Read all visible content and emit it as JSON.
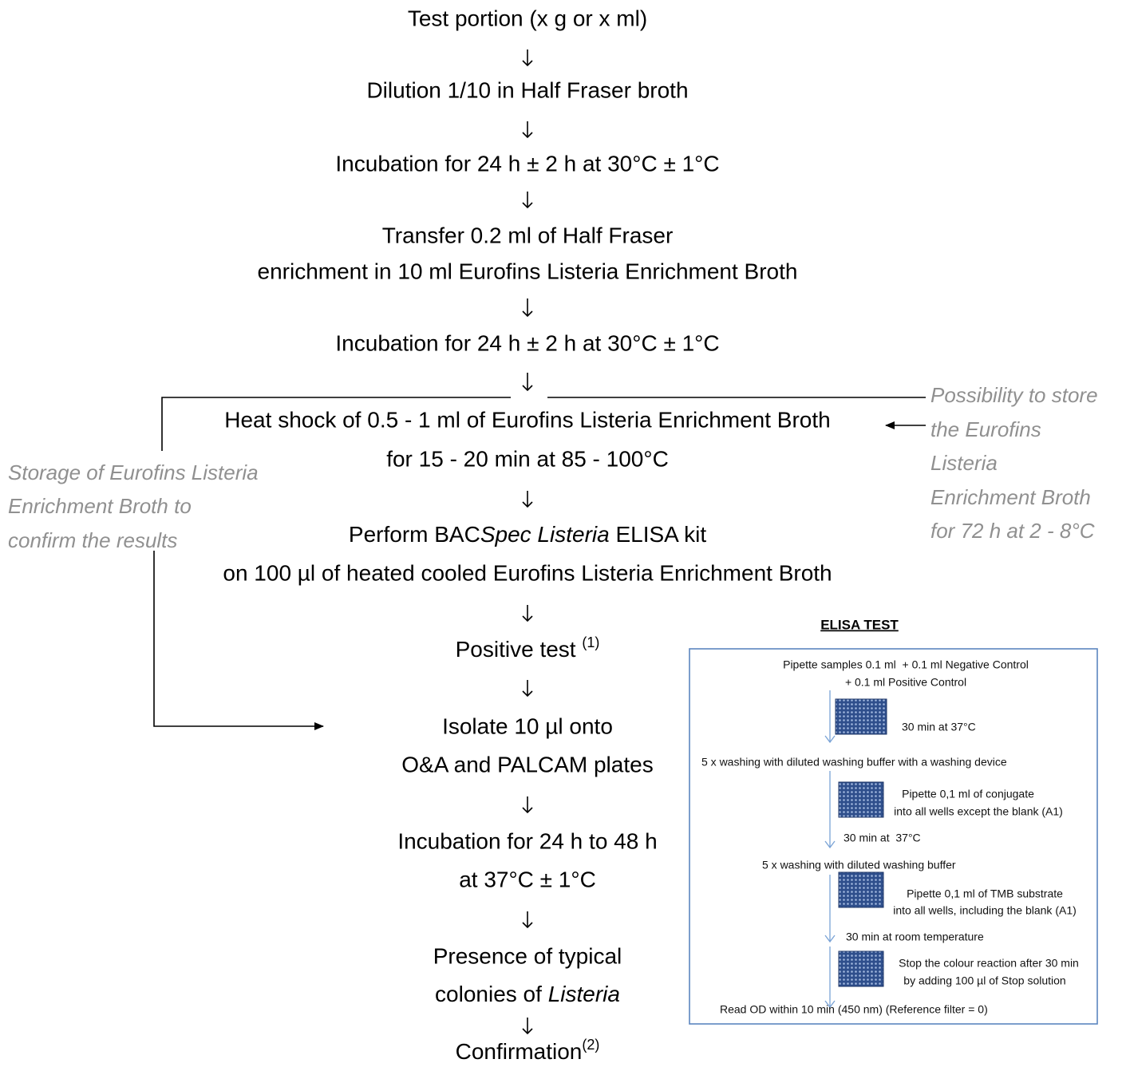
{
  "flow": {
    "steps": [
      {
        "lines": [
          "Test portion (x g or x ml)"
        ]
      },
      {
        "lines": [
          "Dilution 1/10 in Half Fraser broth"
        ]
      },
      {
        "lines": [
          "Incubation for 24 h ± 2 h at 30°C ± 1°C"
        ]
      },
      {
        "lines": [
          "Transfer 0.2 ml of Half Fraser",
          "enrichment in 10 ml Eurofins Listeria Enrichment Broth"
        ]
      },
      {
        "lines": [
          "Incubation for 24 h ± 2 h at 30°C ± 1°C"
        ]
      },
      {
        "lines": [
          "Heat shock of 0.5 - 1 ml of Eurofins Listeria Enrichment Broth",
          "for 15 - 20 min at 85 - 100°C"
        ]
      },
      {
        "lines": [
          [
            "Perform BAC",
            "Spec Listeria",
            " ELISA kit"
          ],
          "on 100 µl of heated cooled Eurofins Listeria Enrichment Broth"
        ]
      },
      {
        "lines": [
          [
            "Positive test ",
            "(1)"
          ]
        ]
      },
      {
        "lines": [
          "Isolate 10 µl onto",
          "O&A and PALCAM plates"
        ]
      },
      {
        "lines": [
          "Incubation for 24 h to 48 h",
          "at 37°C ± 1°C"
        ]
      },
      {
        "lines": [
          "Presence of typical",
          [
            "colonies of ",
            "Listeria"
          ]
        ]
      },
      {
        "lines": [
          [
            "Confirmation",
            "(2)"
          ]
        ]
      }
    ]
  },
  "storage_note": {
    "lines": [
      "Storage of Eurofins Listeria",
      "Enrichment Broth to",
      "confirm the results"
    ]
  },
  "store_note": {
    "lines": [
      "Possibility to store",
      "the Eurofins",
      "Listeria",
      "Enrichment Broth",
      "for 72 h at 2 - 8°C"
    ]
  },
  "elisa": {
    "title": "ELISA TEST",
    "texts": [
      "Pipette samples 0.1 ml  + 0.1 ml Negative Control",
      "+ 0.1 ml Positive Control",
      "30 min at 37°C",
      "5 x washing with diluted washing buffer with a washing device",
      "Pipette 0,1 ml of conjugate",
      "into all wells except the blank (A1)",
      "30 min at  37°C",
      "5 x washing with diluted washing buffer",
      "Pipette 0,1 ml of TMB substrate",
      "into all wells, including the blank (A1)",
      "30 min at room temperature",
      "Stop the colour reaction after 30 min",
      "by adding 100 µl of Stop solution",
      "Read OD within 10 min (450 nm) (Reference filter = 0)"
    ]
  }
}
